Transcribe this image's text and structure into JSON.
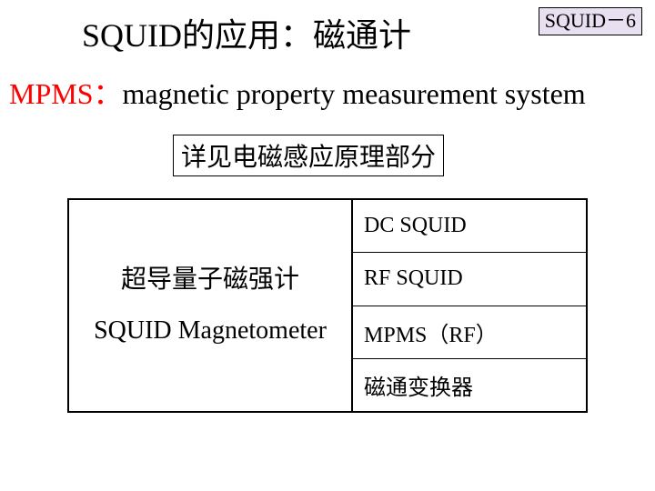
{
  "badge": "SQUID－6",
  "title": "SQUID的应用：磁通计",
  "subtitle": {
    "acronym": "MPMS：",
    "expansion": "magnetic property measurement system"
  },
  "note": "详见电磁感应原理部分",
  "table": {
    "left": {
      "line1": "超导量子磁强计",
      "line2": "SQUID Magnetometer"
    },
    "right": [
      "DC SQUID",
      "RF SQUID",
      "MPMS（RF）",
      "磁通变换器"
    ]
  },
  "colors": {
    "badge_bg": "#e8e0f0",
    "acronym_color": "#ff0000",
    "background": "#ffffff",
    "border": "#000000"
  },
  "fonts": {
    "title_size": 36,
    "subtitle_size": 32,
    "note_size": 28,
    "table_left_size": 28,
    "table_right_size": 24,
    "badge_size": 22
  }
}
